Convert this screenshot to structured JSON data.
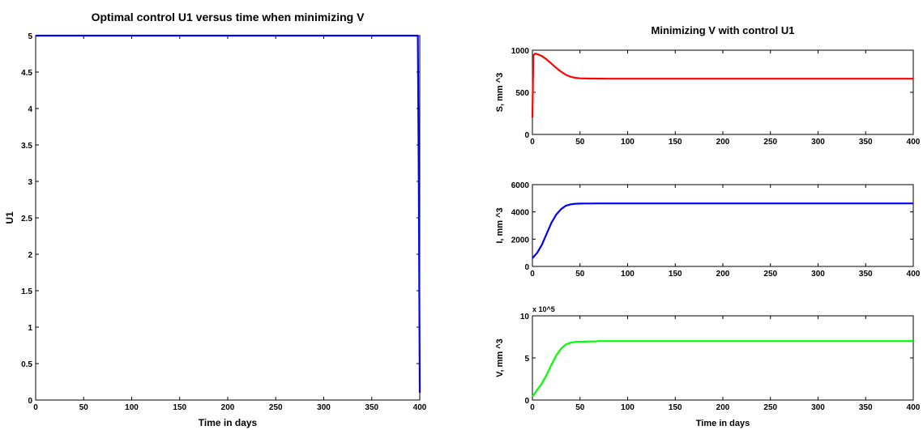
{
  "chart_data": [
    {
      "type": "line",
      "title": "Optimal control U1 versus time when minimizing V",
      "xlabel": "Time in days",
      "ylabel": "U1",
      "xlim": [
        0,
        400
      ],
      "ylim": [
        0,
        5
      ],
      "xticks": [
        "0",
        "50",
        "100",
        "150",
        "200",
        "250",
        "300",
        "350",
        "400"
      ],
      "yticks": [
        "0",
        "0.5",
        "1",
        "1.5",
        "2",
        "2.5",
        "3",
        "3.5",
        "4",
        "4.5",
        "5"
      ],
      "grid": false,
      "series": [
        {
          "color": "#0000ff",
          "x": [
            0,
            398,
            399,
            400
          ],
          "y": [
            5,
            5,
            3,
            0.1
          ]
        }
      ]
    },
    {
      "type": "line",
      "title": "Minimizing V with control U1",
      "xlabel": "",
      "ylabel": "S, mm  ^3",
      "xlim": [
        0,
        400
      ],
      "ylim": [
        0,
        1000
      ],
      "xticks": [
        "0",
        "50",
        "100",
        "150",
        "200",
        "250",
        "300",
        "350",
        "400"
      ],
      "yticks": [
        "0",
        "500",
        "1000"
      ],
      "grid": false,
      "series": [
        {
          "color": "#ff0000",
          "x": [
            0,
            1,
            3,
            6,
            10,
            15,
            20,
            25,
            30,
            35,
            40,
            45,
            50,
            60,
            80,
            100,
            150,
            200,
            250,
            300,
            350,
            400
          ],
          "y": [
            200,
            940,
            960,
            950,
            930,
            890,
            840,
            790,
            745,
            710,
            685,
            672,
            666,
            663,
            662,
            662,
            662,
            662,
            662,
            662,
            662,
            662
          ]
        }
      ]
    },
    {
      "type": "line",
      "title": "",
      "xlabel": "",
      "ylabel": "I, mm  ^3",
      "xlim": [
        0,
        400
      ],
      "ylim": [
        0,
        6000
      ],
      "xticks": [
        "0",
        "50",
        "100",
        "150",
        "200",
        "250",
        "300",
        "350",
        "400"
      ],
      "yticks": [
        "0",
        "2000",
        "4000",
        "6000"
      ],
      "grid": false,
      "series": [
        {
          "color": "#0000ff",
          "x": [
            0,
            5,
            10,
            15,
            20,
            25,
            30,
            35,
            40,
            45,
            50,
            55,
            60,
            70,
            100,
            150,
            200,
            250,
            300,
            350,
            400
          ],
          "y": [
            600,
            1000,
            1600,
            2400,
            3200,
            3800,
            4200,
            4450,
            4550,
            4600,
            4610,
            4615,
            4618,
            4620,
            4620,
            4620,
            4620,
            4620,
            4620,
            4620,
            4620
          ]
        }
      ]
    },
    {
      "type": "line",
      "title": "",
      "xlabel": "Time in days",
      "ylabel": "V, mm  ^3",
      "y_multiplier": "x 10^5",
      "xlim": [
        0,
        400
      ],
      "ylim": [
        0,
        10
      ],
      "xticks": [
        "0",
        "50",
        "100",
        "150",
        "200",
        "250",
        "300",
        "350",
        "400"
      ],
      "yticks": [
        "0",
        "5",
        "10"
      ],
      "grid": false,
      "series": [
        {
          "color": "#00ff00",
          "x": [
            0,
            5,
            10,
            15,
            20,
            25,
            30,
            35,
            40,
            45,
            50,
            55,
            60,
            65,
            70,
            100,
            150,
            200,
            250,
            300,
            350,
            400
          ],
          "y": [
            0.4,
            1.2,
            2.0,
            3.0,
            4.2,
            5.3,
            6.1,
            6.6,
            6.8,
            6.9,
            6.92,
            6.93,
            6.95,
            6.95,
            7.0,
            7.0,
            7.0,
            7.0,
            7.0,
            7.0,
            7.0,
            7.0
          ]
        }
      ]
    }
  ]
}
